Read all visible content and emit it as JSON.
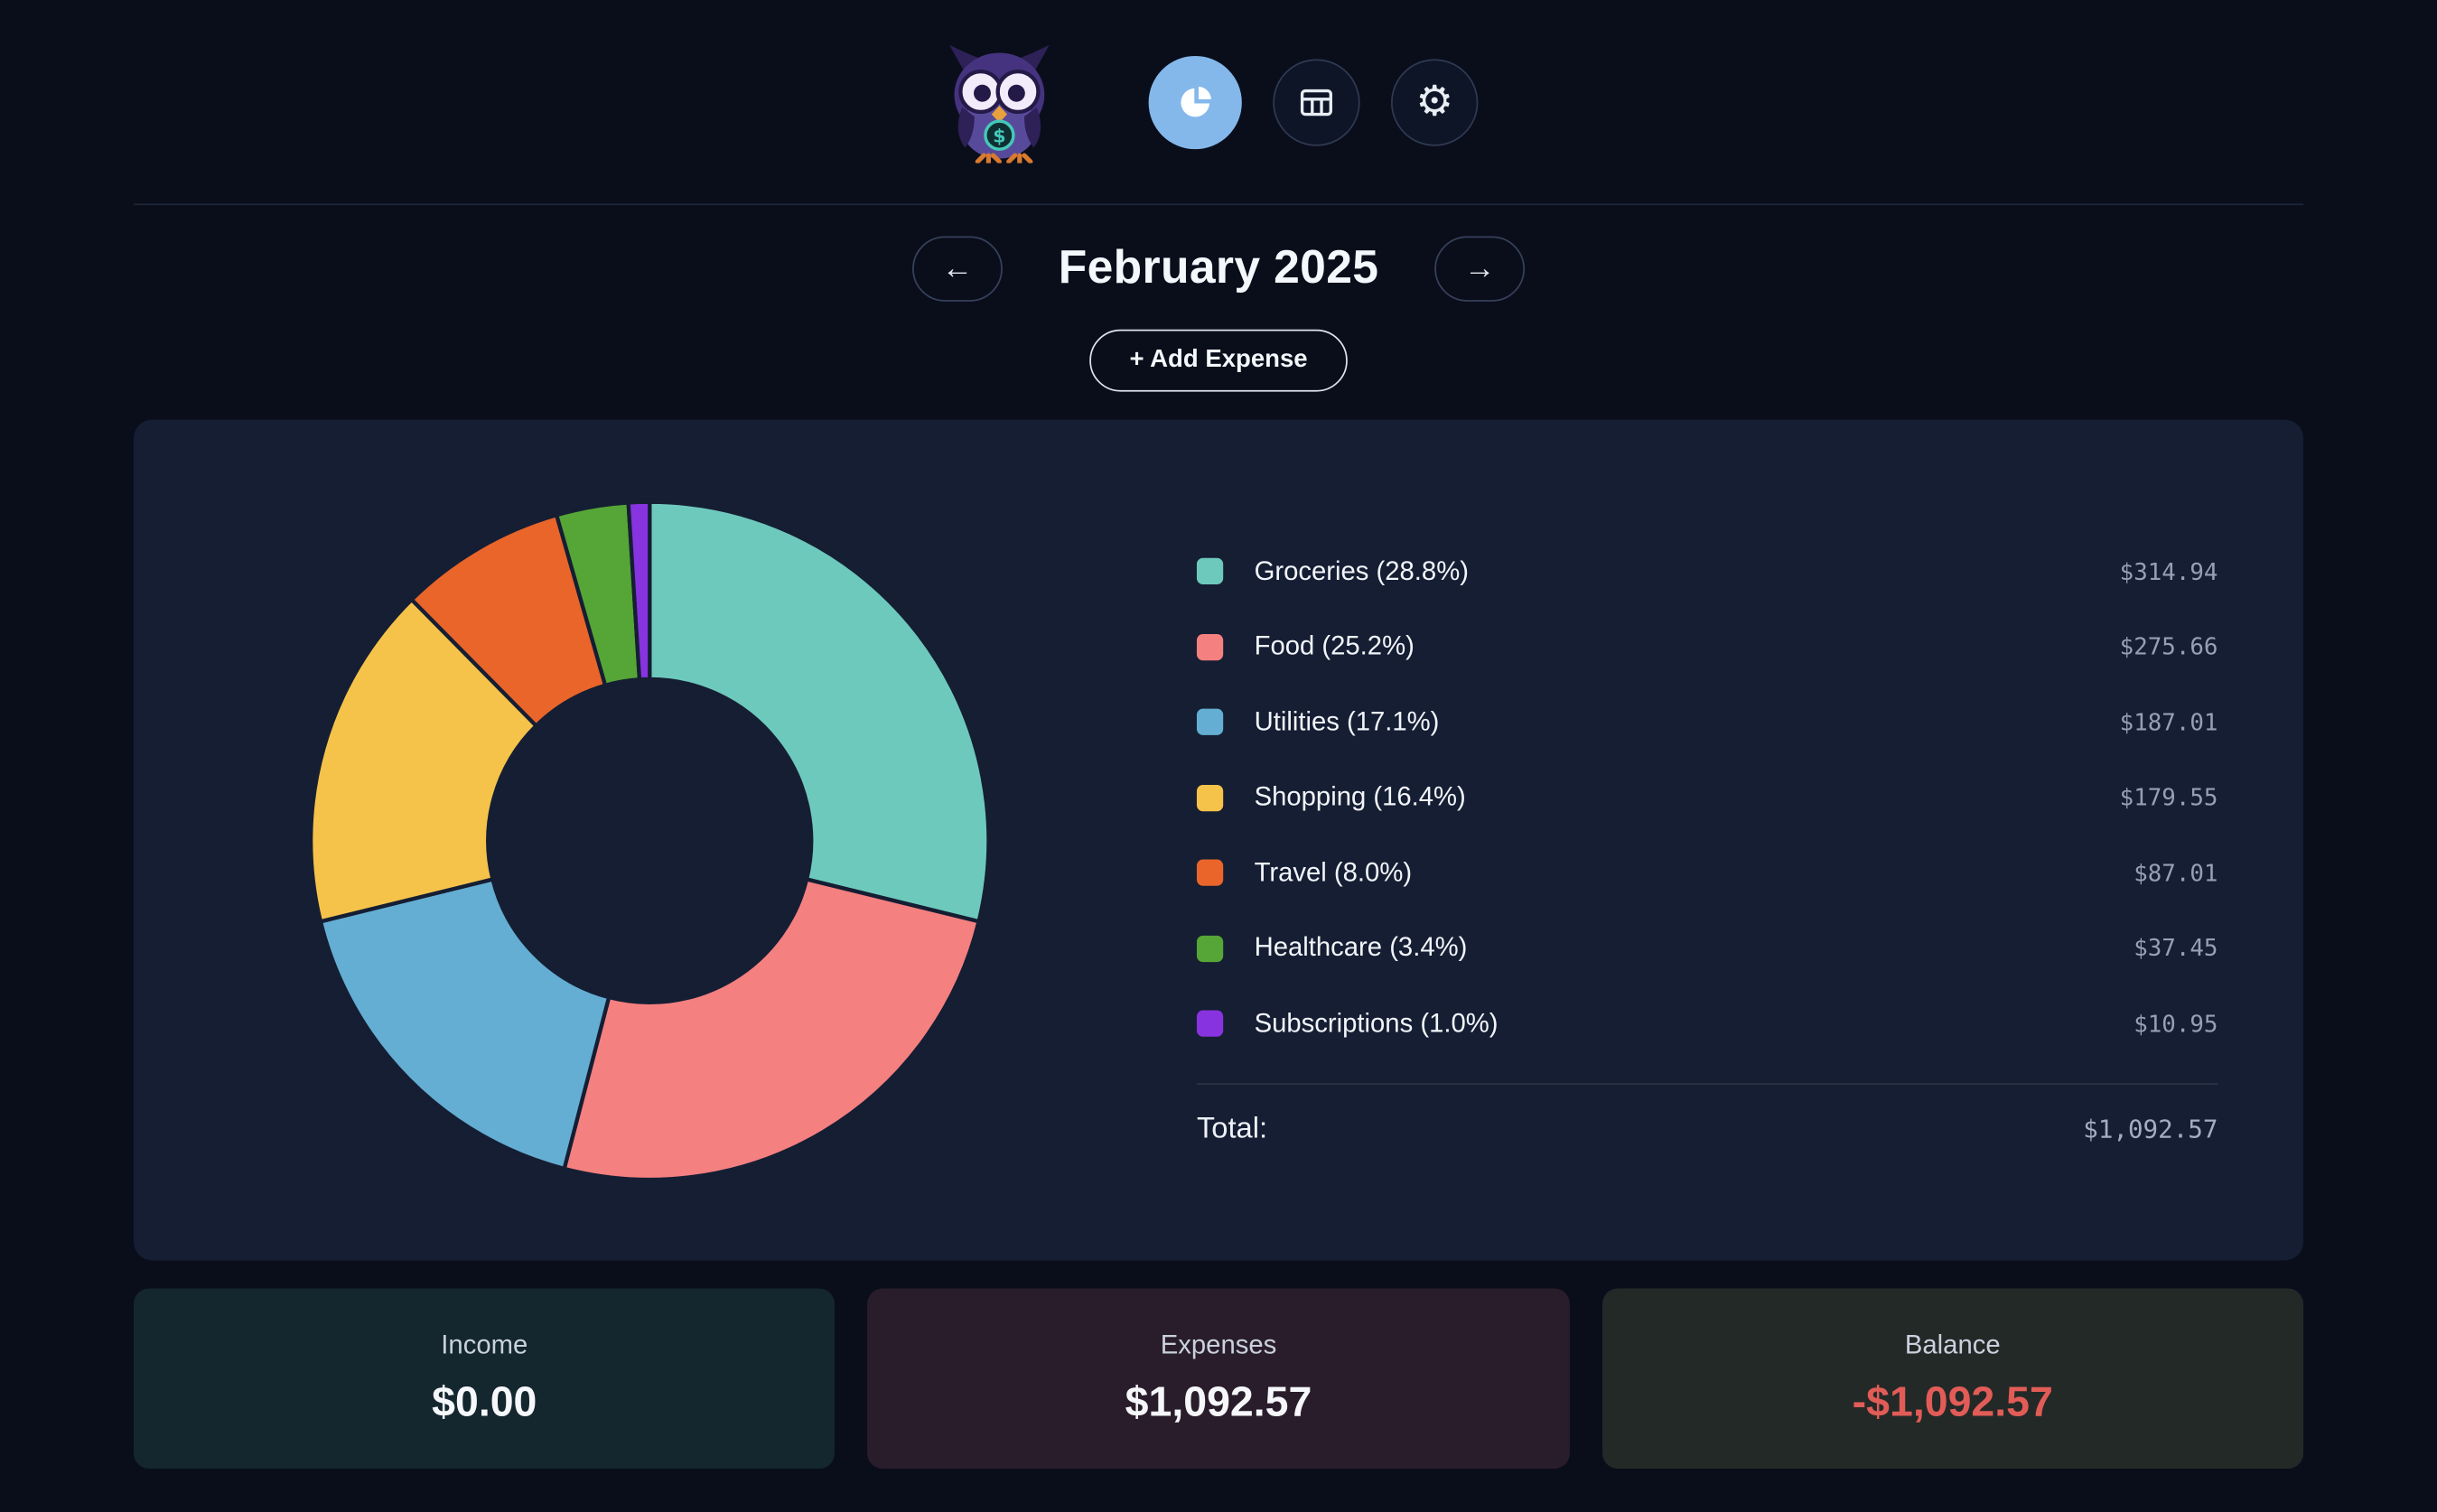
{
  "header": {
    "buttons": [
      {
        "name": "pie-chart-view",
        "active": true
      },
      {
        "name": "table-view",
        "active": false
      },
      {
        "name": "settings",
        "active": false
      }
    ]
  },
  "month_nav": {
    "prev_label": "←",
    "title": "February 2025",
    "next_label": "→"
  },
  "add_expense": {
    "label": "+ Add Expense"
  },
  "chart_data": {
    "type": "pie",
    "donut": true,
    "start_angle": "top",
    "direction": "clockwise",
    "categories": [
      "Groceries",
      "Food",
      "Utilities",
      "Shopping",
      "Travel",
      "Healthcare",
      "Subscriptions"
    ],
    "values": [
      314.94,
      275.66,
      187.01,
      179.55,
      87.01,
      37.45,
      10.95
    ],
    "percentages": [
      28.8,
      25.2,
      17.1,
      16.4,
      8.0,
      3.4,
      1.0
    ],
    "colors": [
      "#6ec9bd",
      "#f58080",
      "#64aed3",
      "#f5c34a",
      "#e9652a",
      "#55a636",
      "#8833e0"
    ],
    "slice_border_color": "#151e33",
    "total": 1092.57,
    "legend_position": "right",
    "title": ""
  },
  "legend": {
    "items": [
      {
        "label": "Groceries (28.8%)",
        "amount": "$314.94",
        "color": "#6ec9bd"
      },
      {
        "label": "Food (25.2%)",
        "amount": "$275.66",
        "color": "#f58080"
      },
      {
        "label": "Utilities (17.1%)",
        "amount": "$187.01",
        "color": "#64aed3"
      },
      {
        "label": "Shopping (16.4%)",
        "amount": "$179.55",
        "color": "#f5c34a"
      },
      {
        "label": "Travel (8.0%)",
        "amount": "$87.01",
        "color": "#e9652a"
      },
      {
        "label": "Healthcare (3.4%)",
        "amount": "$37.45",
        "color": "#55a636"
      },
      {
        "label": "Subscriptions (1.0%)",
        "amount": "$10.95",
        "color": "#8833e0"
      }
    ],
    "total_label": "Total:",
    "total_amount": "$1,092.57"
  },
  "summary_cards": [
    {
      "label": "Income",
      "value": "$0.00",
      "value_color": "#f5f7fa",
      "bg": "#14262e"
    },
    {
      "label": "Expenses",
      "value": "$1,092.57",
      "value_color": "#f5f7fa",
      "bg": "#2a1d2b"
    },
    {
      "label": "Balance",
      "value": "-$1,092.57",
      "value_color": "#e25c57",
      "bg": "#232927"
    }
  ]
}
